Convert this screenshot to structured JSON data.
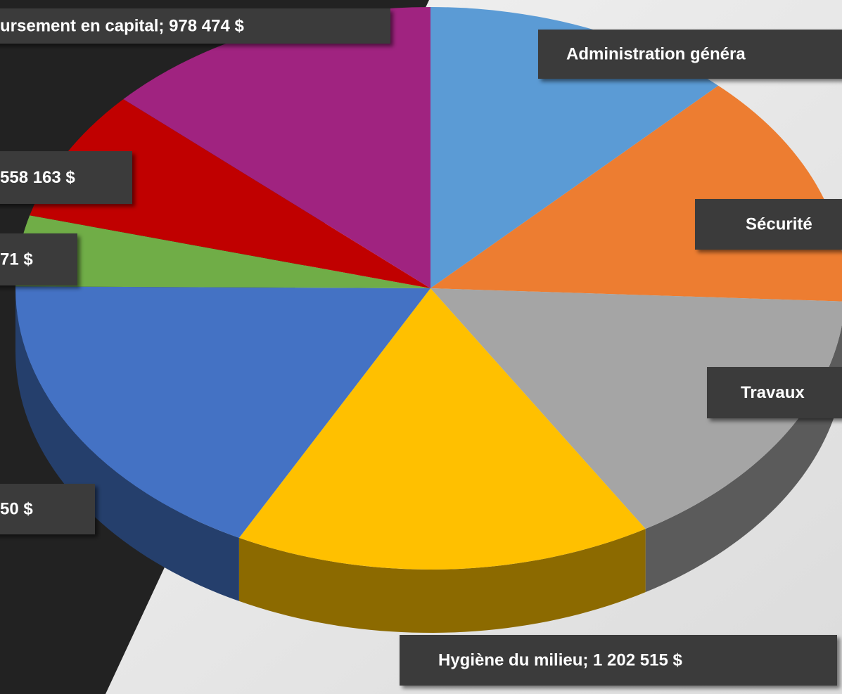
{
  "chart_data": {
    "type": "pie3d",
    "series": [
      {
        "name": "Administration généra",
        "color": "#5b9bd5",
        "value": 900000
      },
      {
        "name": "Sécurité",
        "color": "#ed7d31",
        "value": 1000000
      },
      {
        "name": "Travaux",
        "color": "#a5a5a5",
        "value": 1150000
      },
      {
        "name": "Hygiène du milieu; 1 202 515 $",
        "color": "#ffc000",
        "value": 1202515
      },
      {
        "name": "50 $",
        "color": "#4472c4",
        "value": 1290000
      },
      {
        "name": "71 $",
        "color": "#70ad47",
        "value": 300000
      },
      {
        "name": "558 163 $",
        "color": "#c00000",
        "value": 558163
      },
      {
        "name": "ursement en capital; 978 474 $",
        "color": "#a02380",
        "value": 978474
      }
    ]
  }
}
